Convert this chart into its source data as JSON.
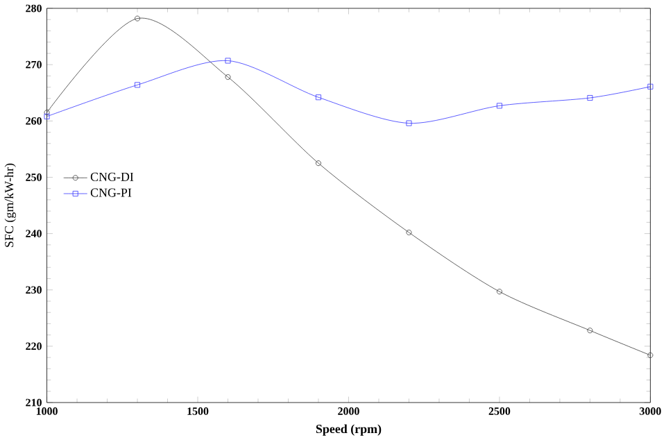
{
  "chart_data": {
    "type": "line",
    "xlabel": "Speed (rpm)",
    "ylabel": "SFC (gm/kW-hr)",
    "x": [
      1000,
      1300,
      1600,
      1900,
      2200,
      2500,
      2800,
      3000
    ],
    "series": [
      {
        "name": "CNG-DI",
        "color": "#3a3a3a",
        "marker": "circle",
        "values": [
          261.5,
          278.2,
          267.8,
          252.5,
          240.2,
          229.7,
          222.8,
          218.4
        ]
      },
      {
        "name": "CNG-PI",
        "color": "#3333ff",
        "marker": "square",
        "values": [
          260.8,
          266.4,
          270.7,
          264.2,
          259.6,
          262.7,
          264.1,
          266.1
        ]
      }
    ],
    "xlim": [
      1000,
      3000
    ],
    "ylim": [
      210,
      280
    ],
    "xticks": [
      1000,
      1500,
      2000,
      2500,
      3000
    ],
    "yticks": [
      210,
      220,
      230,
      240,
      250,
      260,
      270,
      280
    ],
    "grid": false,
    "legend": "left",
    "line_style": "solid"
  }
}
